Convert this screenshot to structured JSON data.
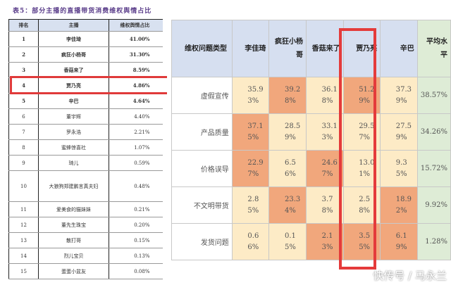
{
  "left_table": {
    "title": "表5：部分主播的直播带货消费维权舆情占比",
    "headers": [
      "排名",
      "主播",
      "维权舆情占比"
    ],
    "rows": [
      [
        "1",
        "李佳琦",
        "41.00%"
      ],
      [
        "2",
        "疯狂小杨哥",
        "31.30%"
      ],
      [
        "3",
        "香菇来了",
        "8.59%"
      ],
      [
        "4",
        "贾乃亮",
        "4.86%"
      ],
      [
        "5",
        "辛巴",
        "4.64%"
      ],
      [
        "6",
        "董宇辉",
        "4.40%"
      ],
      [
        "7",
        "罗永浩",
        "2.21%"
      ],
      [
        "8",
        "蜜蜂惊喜社",
        "1.07%"
      ],
      [
        "9",
        "琦儿",
        "0.59%"
      ],
      [
        "10",
        "大狼狗郑建鹏言真夫妇",
        "0.48%"
      ],
      [
        "11",
        "爱美食的猫妹妹",
        "0.21%"
      ],
      [
        "12",
        "董先生珠宝",
        "0.20%"
      ],
      [
        "13",
        "散打哥",
        "0.15%"
      ],
      [
        "14",
        "烈儿宝贝",
        "0.13%"
      ],
      [
        "15",
        "蛋蛋小盆友",
        "0.08%"
      ]
    ]
  },
  "right_table": {
    "headers": [
      "维权问题类型",
      "李佳琦",
      "疯狂小杨哥",
      "香菇来了",
      "贾乃亮",
      "辛巴",
      "平均水平"
    ],
    "rows": [
      {
        "label": "虚假宣传",
        "values": [
          "35.93%",
          "39.28%",
          "36.18%",
          "51.29%",
          "37.39%"
        ],
        "avg": "38.57%"
      },
      {
        "label": "产品质量",
        "values": [
          "37.15%",
          "28.59%",
          "33.13%",
          "29.57%",
          "27.59%"
        ],
        "avg": "34.26%"
      },
      {
        "label": "价格误导",
        "values": [
          "22.97%",
          "6.56%",
          "24.67%",
          "13.01%",
          "9.35%"
        ],
        "avg": "15.72%"
      },
      {
        "label": "不文明带货",
        "values": [
          "2.85%",
          "23.34%",
          "3.78%",
          "2.58%",
          "18.92%"
        ],
        "avg": "9.92%"
      },
      {
        "label": "发货问题",
        "values": [
          "0.66%",
          "0.15%",
          "2.13%",
          "3.55%",
          "6.19%"
        ],
        "avg": "1.28%"
      }
    ],
    "highlight": [
      [
        0,
        1,
        0,
        1,
        0
      ],
      [
        1,
        0,
        0,
        0,
        0
      ],
      [
        1,
        0,
        1,
        0,
        0
      ],
      [
        0,
        1,
        0,
        0,
        1
      ],
      [
        0,
        0,
        1,
        1,
        1
      ]
    ]
  },
  "watermark": "快传号 / 马永兰",
  "colors": {
    "high": "#f1a77c",
    "low": "#fdebc6",
    "avg": "#deecd6",
    "header": "#d6dff0",
    "box": "#e43b3b"
  }
}
